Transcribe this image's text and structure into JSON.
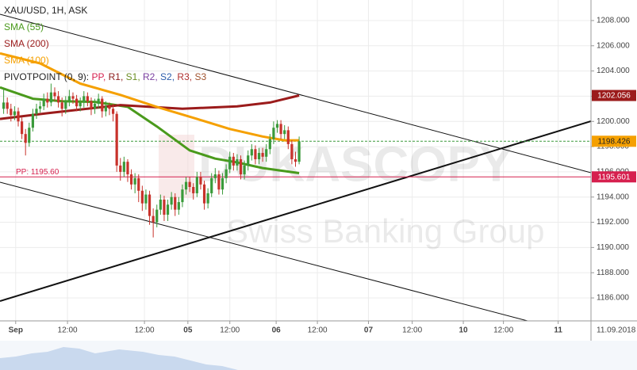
{
  "chart_data": {
    "type": "candlestick",
    "title": "XAU/USD, 1H, ASK",
    "pivot_legend": [
      {
        "text": "PIVOTPOINT (0, 9):",
        "color": "#222222"
      },
      {
        "text": "PP,",
        "color": "#d6204e"
      },
      {
        "text": "R1,",
        "color": "#8b1a1a"
      },
      {
        "text": "S1,",
        "color": "#6b8e23"
      },
      {
        "text": "R2,",
        "color": "#7b3fa0"
      },
      {
        "text": "S2,",
        "color": "#2a5caa"
      },
      {
        "text": "R3,",
        "color": "#b03030"
      },
      {
        "text": "S3",
        "color": "#a0522d"
      }
    ],
    "watermark": [
      "DUKASCOPY",
      "Swiss Banking Group"
    ],
    "date_label": "11.09.2018",
    "up_color": "#3a9a3a",
    "down_color": "#c8322b",
    "x": [
      1,
      2,
      3,
      4,
      5,
      6,
      7,
      8,
      9,
      10,
      11,
      12,
      13,
      14,
      15,
      16,
      17,
      18,
      19,
      20,
      21,
      22,
      23,
      24,
      25,
      26,
      27,
      28,
      29,
      30,
      31,
      32,
      33,
      34,
      35,
      36,
      37,
      38,
      39,
      40,
      41,
      42,
      43,
      44,
      45,
      46,
      47,
      48,
      49,
      50,
      51,
      52,
      53,
      54,
      55,
      56,
      57,
      58,
      59,
      60,
      61,
      62,
      63,
      64,
      65,
      66,
      67,
      68,
      69,
      70,
      71,
      72,
      73,
      74,
      75,
      76,
      77,
      78,
      79,
      80,
      81,
      82
    ],
    "open": [
      1201.0,
      1201.5,
      1201.0,
      1200.5,
      1200.8,
      1200.0,
      1199.0,
      1198.3,
      1199.5,
      1200.6,
      1201.0,
      1201.2,
      1201.8,
      1201.5,
      1202.3,
      1202.0,
      1201.5,
      1201.0,
      1201.6,
      1202.0,
      1201.8,
      1201.2,
      1201.5,
      1202.0,
      1201.6,
      1201.0,
      1201.4,
      1201.8,
      1200.8,
      1201.2,
      1201.0,
      1200.6,
      1196.5,
      1196.0,
      1196.8,
      1195.8,
      1195.0,
      1195.5,
      1194.5,
      1193.5,
      1194.2,
      1192.5,
      1192.0,
      1193.0,
      1193.8,
      1192.6,
      1193.4,
      1194.0,
      1193.0,
      1193.6,
      1194.6,
      1195.2,
      1194.8,
      1194.3,
      1195.6,
      1195.0,
      1193.5,
      1194.3,
      1195.5,
      1195.8,
      1194.6,
      1195.5,
      1196.2,
      1197.2,
      1196.5,
      1197.0,
      1195.8,
      1196.5,
      1197.3,
      1197.8,
      1197.0,
      1197.5,
      1197.2,
      1197.8,
      1198.6,
      1199.5,
      1199.8,
      1199.0,
      1199.3,
      1198.2,
      1197.0,
      1196.8
    ],
    "high": [
      1202.6,
      1201.9,
      1201.4,
      1201.2,
      1201.1,
      1200.3,
      1199.4,
      1199.9,
      1201.0,
      1201.4,
      1201.6,
      1202.2,
      1202.3,
      1203.0,
      1202.7,
      1202.4,
      1201.9,
      1202.0,
      1202.5,
      1202.3,
      1202.1,
      1201.9,
      1202.4,
      1202.3,
      1201.9,
      1201.8,
      1202.2,
      1202.0,
      1201.6,
      1201.5,
      1201.4,
      1200.8,
      1197.1,
      1197.2,
      1197.0,
      1196.2,
      1195.9,
      1195.8,
      1194.9,
      1194.6,
      1194.5,
      1193.1,
      1193.4,
      1194.2,
      1194.1,
      1193.8,
      1194.4,
      1194.3,
      1194.0,
      1195.0,
      1195.6,
      1195.6,
      1195.1,
      1196.0,
      1196.0,
      1195.3,
      1194.7,
      1195.9,
      1196.3,
      1196.1,
      1195.9,
      1196.6,
      1197.6,
      1197.5,
      1197.4,
      1197.3,
      1196.9,
      1197.7,
      1198.2,
      1198.1,
      1197.9,
      1197.9,
      1198.2,
      1199.0,
      1200.0,
      1200.1,
      1200.1,
      1199.7,
      1199.6,
      1198.5,
      1197.6,
      1198.8
    ],
    "low": [
      1200.6,
      1200.6,
      1200.0,
      1200.1,
      1199.6,
      1198.6,
      1197.3,
      1198.0,
      1199.2,
      1200.2,
      1200.7,
      1200.9,
      1201.1,
      1201.2,
      1201.6,
      1201.1,
      1200.4,
      1200.6,
      1201.2,
      1201.4,
      1200.8,
      1200.8,
      1201.1,
      1201.2,
      1200.5,
      1200.6,
      1201.0,
      1200.3,
      1200.4,
      1200.5,
      1200.0,
      1196.0,
      1195.3,
      1195.6,
      1195.2,
      1194.6,
      1194.3,
      1193.6,
      1192.9,
      1193.0,
      1191.8,
      1190.8,
      1191.6,
      1192.6,
      1192.1,
      1192.1,
      1193.0,
      1192.5,
      1192.6,
      1193.2,
      1194.2,
      1194.4,
      1193.8,
      1194.0,
      1194.6,
      1193.0,
      1193.1,
      1194.0,
      1195.1,
      1194.2,
      1194.2,
      1195.1,
      1195.9,
      1196.1,
      1196.1,
      1195.4,
      1195.4,
      1196.1,
      1196.9,
      1196.6,
      1196.6,
      1196.8,
      1196.8,
      1197.4,
      1198.2,
      1199.1,
      1198.6,
      1198.6,
      1197.8,
      1196.6,
      1196.4,
      1196.6
    ],
    "close": [
      1201.5,
      1201.0,
      1200.5,
      1200.8,
      1200.0,
      1199.0,
      1198.3,
      1199.5,
      1200.6,
      1201.0,
      1201.2,
      1201.8,
      1201.5,
      1202.3,
      1202.0,
      1201.5,
      1201.0,
      1201.6,
      1202.0,
      1201.8,
      1201.2,
      1201.5,
      1202.0,
      1201.6,
      1201.0,
      1201.4,
      1201.8,
      1200.8,
      1201.2,
      1201.0,
      1200.6,
      1196.5,
      1196.0,
      1196.8,
      1195.8,
      1195.0,
      1195.5,
      1194.5,
      1193.5,
      1194.2,
      1192.5,
      1192.0,
      1193.0,
      1193.8,
      1192.6,
      1193.4,
      1194.0,
      1193.0,
      1193.6,
      1194.6,
      1195.2,
      1194.8,
      1194.3,
      1195.6,
      1195.0,
      1193.5,
      1194.3,
      1195.5,
      1195.8,
      1194.6,
      1195.5,
      1196.2,
      1197.2,
      1196.5,
      1197.0,
      1195.8,
      1196.5,
      1197.3,
      1197.8,
      1197.0,
      1197.5,
      1197.2,
      1197.8,
      1198.6,
      1199.5,
      1199.8,
      1199.0,
      1199.3,
      1198.2,
      1197.0,
      1196.8,
      1198.426
    ],
    "indicators": [
      {
        "name": "SMA (55)",
        "color": "#4a9a1c",
        "x": [
          0,
          9,
          17,
          26,
          35,
          43,
          52,
          59,
          65,
          72,
          82
        ],
        "values": [
          1202.7,
          1201.8,
          1201.6,
          1201.55,
          1201.15,
          1199.6,
          1197.7,
          1197.05,
          1196.75,
          1196.3,
          1195.9
        ]
      },
      {
        "name": "SMA (200)",
        "color": "#9b1b1b",
        "x": [
          0,
          13,
          33,
          50,
          65,
          74,
          82
        ],
        "values": [
          1200.2,
          1200.65,
          1201.3,
          1201.0,
          1201.2,
          1201.5,
          1202.056
        ]
      },
      {
        "name": "SMA (100)",
        "color": "#f5a000",
        "x": [
          0,
          11,
          22,
          33,
          43,
          54,
          63,
          72,
          78,
          82
        ],
        "values": [
          1205.4,
          1204.6,
          1203.0,
          1202.1,
          1201.15,
          1200.2,
          1199.4,
          1198.8,
          1198.5,
          1198.5
        ]
      }
    ],
    "trendlines": [
      {
        "x": [
          0,
          162
        ],
        "values": [
          1208.5,
          1195.93
        ]
      },
      {
        "x": [
          0,
          144.6
        ],
        "values": [
          1195.18,
          1184.18
        ]
      },
      {
        "x": [
          0,
          162
        ],
        "values": [
          1185.75,
          1200.02
        ]
      }
    ],
    "pivot": {
      "label": "PP: 1195.60",
      "value": 1195.601,
      "color": "#d6204e"
    },
    "xlim": [
      0,
      162
    ],
    "xticks": [
      {
        "value": 4.3,
        "label": "Sep"
      },
      {
        "value": 18.5,
        "label": "12:00"
      },
      {
        "value": 39.6,
        "label": "12:00"
      },
      {
        "value": 51.5,
        "label": "05"
      },
      {
        "value": 63,
        "label": "12:00"
      },
      {
        "value": 75.7,
        "label": "06"
      },
      {
        "value": 87,
        "label": "12:00"
      },
      {
        "value": 101,
        "label": "07"
      },
      {
        "value": 113,
        "label": "12:00"
      },
      {
        "value": 127,
        "label": "10"
      },
      {
        "value": 138,
        "label": "12:00"
      },
      {
        "value": 153,
        "label": "11"
      }
    ],
    "ylim": [
      1184.18,
      1209.63
    ],
    "yticks": [
      {
        "value": 1186,
        "label": "1186.000"
      },
      {
        "value": 1188,
        "label": "1188.000"
      },
      {
        "value": 1190,
        "label": "1190.000"
      },
      {
        "value": 1192,
        "label": "1192.000"
      },
      {
        "value": 1194,
        "label": "1194.000"
      },
      {
        "value": 1196,
        "label": "1196.000"
      },
      {
        "value": 1198,
        "label": "1198.000"
      },
      {
        "value": 1200,
        "label": "1200.000"
      },
      {
        "value": 1202,
        "label": "1202.000"
      },
      {
        "value": 1204,
        "label": "1204.000"
      },
      {
        "value": 1206,
        "label": "1206.000"
      },
      {
        "value": 1208,
        "label": "1208.000"
      }
    ],
    "grid": true
  }
}
